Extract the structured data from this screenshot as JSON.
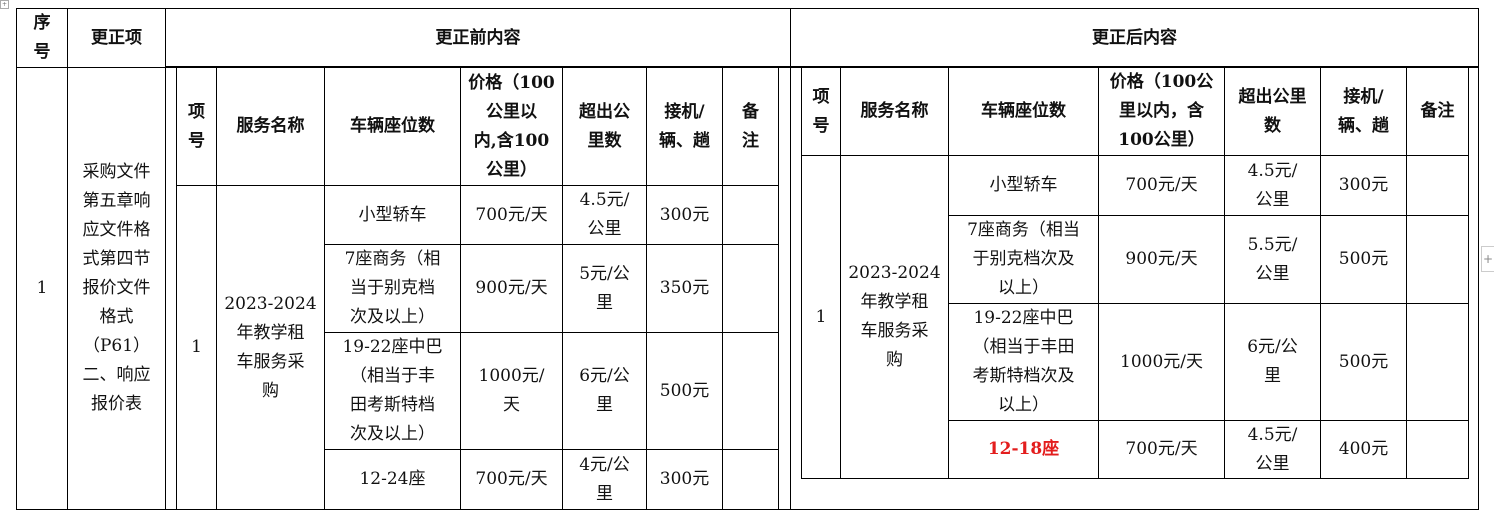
{
  "outer": {
    "headers": {
      "seq": "序\n号",
      "item": "更正项",
      "before": "更正前内容",
      "after": "更正后内容"
    },
    "row": {
      "seq": "1",
      "item": "采购文件\n第五章响\n应文件格\n式第四节\n报价文件\n格式\n（P61）\n二、响应\n报价表"
    }
  },
  "before": {
    "headers": [
      "项\n号",
      "服务名称",
      "车辆座位数",
      "价格（100\n公里以\n内,含100\n公里）",
      "超出公\n里数",
      "接机/\n辆、趟",
      "备\n注"
    ],
    "item_no": "1",
    "service": "2023-2024\n年教学租\n车服务采\n购",
    "rows": [
      {
        "seats": "小型轿车",
        "price": "700元/天",
        "extra": "4.5元/\n公里",
        "pickup": "300元",
        "note": ""
      },
      {
        "seats": "7座商务（相\n当于别克档\n次及以上）",
        "price": "900元/天",
        "extra": "5元/公\n里",
        "pickup": "350元",
        "note": ""
      },
      {
        "seats": "19-22座中巴\n（相当于丰\n田考斯特档\n次及以上）",
        "price": "1000元/\n天",
        "extra": "6元/公\n里",
        "pickup": "500元",
        "note": ""
      },
      {
        "seats": "12-24座",
        "price": "700元/天",
        "extra": "4元/公\n里",
        "pickup": "300元",
        "note": ""
      }
    ]
  },
  "after": {
    "headers": [
      "项\n号",
      "服务名称",
      "车辆座位数",
      "价格（100公\n里以内，含\n100公里）",
      "超出公里\n数",
      "接机/\n辆、趟",
      "备注"
    ],
    "item_no": "1",
    "service": "2023-2024\n年教学租\n车服务采\n购",
    "rows": [
      {
        "seats": "小型轿车",
        "price": "700元/天",
        "extra": "4.5元/\n公里",
        "pickup": "300元",
        "note": ""
      },
      {
        "seats": "7座商务（相当\n于别克档次及\n以上）",
        "price": "900元/天",
        "extra": "5.5元/\n公里",
        "pickup": "500元",
        "note": ""
      },
      {
        "seats": "19-22座中巴\n（相当于丰田\n考斯特档次及\n以上）",
        "price": "1000元/天",
        "extra": "6元/公\n里",
        "pickup": "500元",
        "note": ""
      },
      {
        "seats": "12-18座",
        "price": "700元/天",
        "extra": "4.5元/\n公里",
        "pickup": "400元",
        "note": ""
      }
    ],
    "highlight_color": "#e31d1d"
  }
}
